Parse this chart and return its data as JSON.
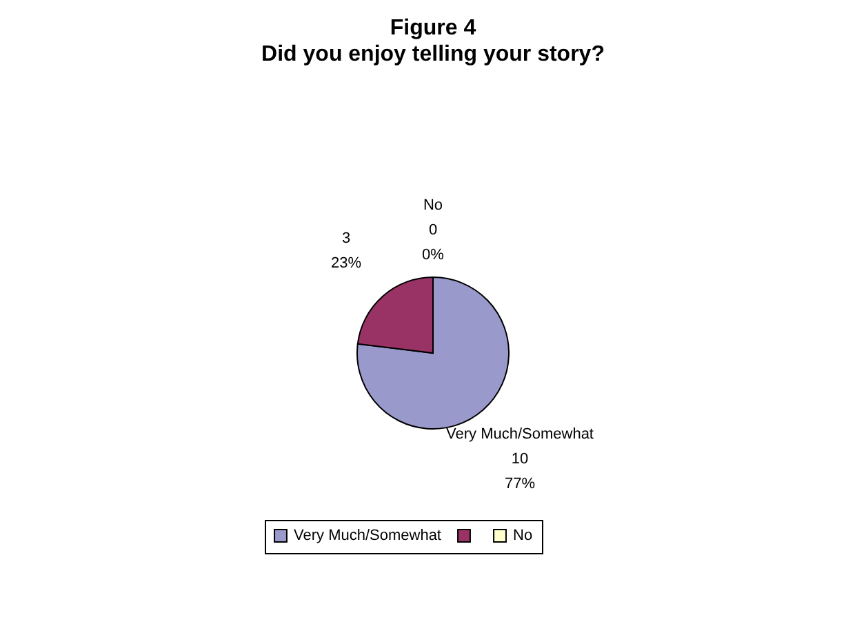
{
  "chart_data": {
    "type": "pie",
    "title": "Figure 4",
    "subtitle": "Did you enjoy telling your story?",
    "categories": [
      "Very Much/Somewhat",
      null,
      "No"
    ],
    "values": [
      10,
      3,
      0
    ],
    "value_labels": [
      "10\n77%",
      "3\n23%",
      "0\n0%"
    ],
    "colors": [
      "#9999cc",
      "#993366",
      "#ffffcc"
    ],
    "legend": "bottom"
  }
}
